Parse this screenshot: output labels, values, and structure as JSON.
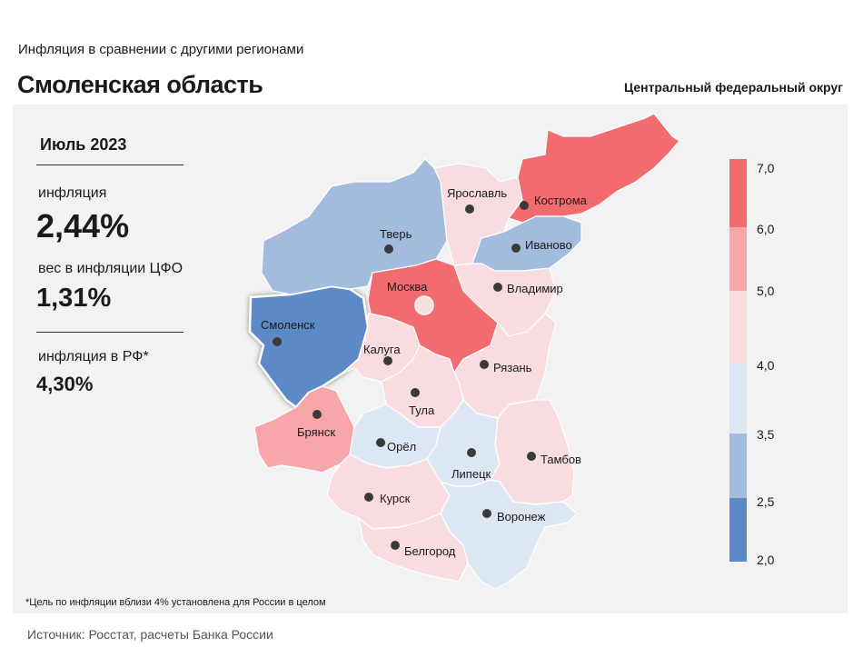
{
  "header": {
    "supertitle": "Инфляция  в сравнении  с другими  регионами",
    "title": "Смоленская область",
    "district": "Центральный федеральный округ"
  },
  "info": {
    "period": "Июль 2023",
    "inflation_label": "инфляция",
    "inflation_value": "2,44%",
    "weight_label": "вес в инфляции  ЦФО",
    "weight_value": "1,31%",
    "rf_label": "инфляция  в РФ*",
    "rf_value": "4,30%"
  },
  "footnote": "*Цель по инфляции вблизи 4% установлена для России в целом",
  "source": "Источник: Росстат, расчеты Банка России",
  "scale": {
    "ticks": [
      "7,0",
      "6,0",
      "5,0",
      "4,0",
      "3,5",
      "2,5",
      "2,0"
    ],
    "colors": [
      "#f26b6e",
      "#f7a6a9",
      "#f9dcdf",
      "#dde6f3",
      "#a3bbdd",
      "#5b8ac7"
    ]
  },
  "regions": [
    {
      "name": "Смоленск",
      "color": "#5b8ac7",
      "selected": true
    },
    {
      "name": "Тверь",
      "color": "#a3bbdd"
    },
    {
      "name": "Ярославль",
      "color": "#f9dcdf"
    },
    {
      "name": "Кострома",
      "color": "#f26b6e"
    },
    {
      "name": "Иваново",
      "color": "#a3bbdd"
    },
    {
      "name": "Москва",
      "color": "#f26b6e"
    },
    {
      "name": "Владимир",
      "color": "#f9dcdf"
    },
    {
      "name": "Калуга",
      "color": "#f9dcdf"
    },
    {
      "name": "Рязань",
      "color": "#f9dcdf"
    },
    {
      "name": "Тула",
      "color": "#f9dcdf"
    },
    {
      "name": "Брянск",
      "color": "#f7a6a9"
    },
    {
      "name": "Орёл",
      "color": "#dde6f3"
    },
    {
      "name": "Липецк",
      "color": "#dde6f3"
    },
    {
      "name": "Тамбов",
      "color": "#f9dcdf"
    },
    {
      "name": "Курск",
      "color": "#f9dcdf"
    },
    {
      "name": "Воронеж",
      "color": "#dde6f3"
    },
    {
      "name": "Белгород",
      "color": "#f9dcdf"
    }
  ]
}
